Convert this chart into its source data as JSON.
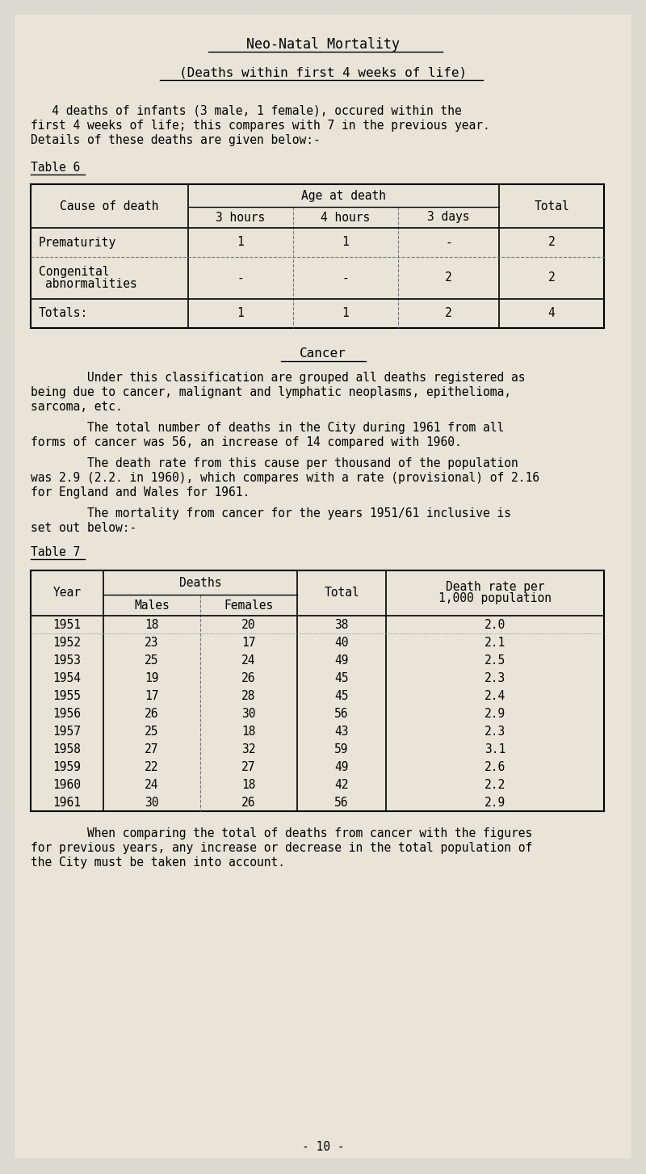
{
  "page_bg": "#dddbd0",
  "content_bg": "#e8e5d8",
  "title1": "Neo-Natal Mortality",
  "title2": "(Deaths within first 4 weeks of life)",
  "intro_text": "   4 deaths of infants (3 male, 1 female), occured within the\nfirst 4 weeks of life; this compares with 7 in the previous year.\nDetails of these deaths are given below:-",
  "table6_label": "Table 6",
  "cancer_title": "Cancer",
  "cancer_para1": "        Under this classification are grouped all deaths registered as\nbeing due to cancer, malignant and lymphatic neoplasms, epithelioma,\nsarcoma, etc.",
  "cancer_para2": "        The total number of deaths in the City during 1961 from all\nforms of cancer was 56, an increase of 14 compared with 1960.",
  "cancer_para3": "        The death rate from this cause per thousand of the population\nwas 2.9 (2.2. in 1960), which compares with a rate (provisional) of 2.16\nfor England and Wales for 1961.",
  "cancer_para4": "        The mortality from cancer for the years 1951/61 inclusive is\nset out below:-",
  "table7_label": "Table 7",
  "table7_rows": [
    [
      "1951",
      "18",
      "20",
      "38",
      "2.0"
    ],
    [
      "1952",
      "23",
      "17",
      "40",
      "2.1"
    ],
    [
      "1953",
      "25",
      "24",
      "49",
      "2.5"
    ],
    [
      "1954",
      "19",
      "26",
      "45",
      "2.3"
    ],
    [
      "1955",
      "17",
      "28",
      "45",
      "2.4"
    ],
    [
      "1956",
      "26",
      "30",
      "56",
      "2.9"
    ],
    [
      "1957",
      "25",
      "18",
      "43",
      "2.3"
    ],
    [
      "1958",
      "27",
      "32",
      "59",
      "3.1"
    ],
    [
      "1959",
      "22",
      "27",
      "49",
      "2.6"
    ],
    [
      "1960",
      "24",
      "18",
      "42",
      "2.2"
    ],
    [
      "1961",
      "30",
      "26",
      "56",
      "2.9"
    ]
  ],
  "final_para": "        When comparing the total of deaths from cancer with the figures\nfor previous years, any increase or decrease in the total population of\nthe City must be taken into account.",
  "page_number": "- 10 -"
}
